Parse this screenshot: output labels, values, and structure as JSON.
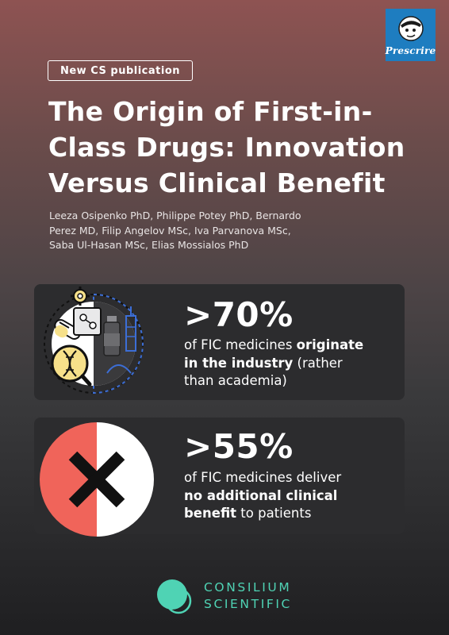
{
  "publisher_logo": {
    "text": "Prescrire"
  },
  "tag": "New CS publication",
  "title_lines": [
    "The Origin of First-in-",
    "Class Drugs: Innovation",
    "Versus Clinical Benefit"
  ],
  "author_lines": [
    "Leeza Osipenko PhD, Philippe Potey PhD, Bernardo",
    "Perez MD, Filip Angelov MSc, Iva Parvanova MSc,",
    "Saba Ul-Hasan MSc, Elias Mossialos PhD"
  ],
  "stat1": {
    "value": ">70%",
    "line1_pre": "of FIC medicines ",
    "line1_bold": "originate",
    "line2_bold": "in the industry",
    "line2_post": " (rather",
    "line3": "than academia)"
  },
  "stat2": {
    "value": ">55%",
    "line1": "of FIC medicines deliver",
    "line2_bold": "no additional clinical",
    "line3_bold": "benefit",
    "line3_post": " to patients"
  },
  "brand": {
    "line1": "CONSILIUM",
    "line2": "SCIENTIFIC"
  },
  "colors": {
    "accent_teal": "#4fd3b4",
    "cross_red": "#f0645a",
    "card_bg": "#2c2c2e",
    "logo_blue": "#1e7dc0",
    "dna_yellow": "#f6e08a"
  },
  "icons": [
    "prescrire-logo-icon",
    "gear-icon",
    "pills-icon",
    "molecule-icon",
    "dna-magnifier-icon",
    "vial-icon",
    "syringe-icon",
    "cross-mark-icon",
    "consilium-logo-icon"
  ]
}
